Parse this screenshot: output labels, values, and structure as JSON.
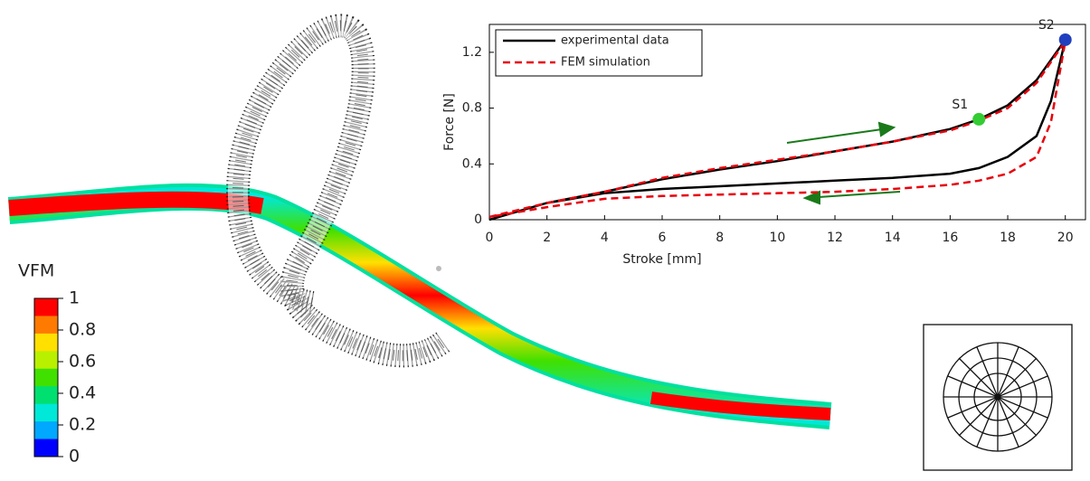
{
  "chart_data": {
    "type": "line",
    "xlabel": "Stroke [mm]",
    "ylabel": "Force [N]",
    "x": [
      0,
      2,
      4,
      6,
      8,
      10,
      12,
      14,
      16,
      17,
      18,
      19,
      20,
      19.5,
      19,
      18,
      17,
      16,
      14,
      12,
      10,
      8,
      6,
      4,
      2,
      0
    ],
    "series": [
      {
        "name": "experimental data",
        "color": "#000000",
        "dash": false,
        "values": [
          0,
          0.12,
          0.2,
          0.29,
          0.36,
          0.42,
          0.49,
          0.56,
          0.65,
          0.72,
          0.82,
          1.0,
          1.29,
          0.85,
          0.6,
          0.45,
          0.37,
          0.33,
          0.3,
          0.28,
          0.26,
          0.24,
          0.22,
          0.19,
          0.12,
          0
        ]
      },
      {
        "name": "FEM simulation",
        "color": "#e8000b",
        "dash": true,
        "values": [
          0.02,
          0.12,
          0.2,
          0.3,
          0.37,
          0.43,
          0.49,
          0.56,
          0.64,
          0.71,
          0.8,
          0.98,
          1.28,
          0.7,
          0.45,
          0.33,
          0.28,
          0.25,
          0.22,
          0.2,
          0.19,
          0.18,
          0.17,
          0.15,
          0.09,
          0.02
        ]
      }
    ],
    "points": [
      {
        "label": "S1",
        "x": 17,
        "y": 0.72,
        "color": "#33cc33"
      },
      {
        "label": "S2",
        "x": 20,
        "y": 1.29,
        "color": "#1f3fbf"
      }
    ],
    "xlim": [
      0,
      20.7
    ],
    "ylim": [
      0,
      1.4
    ],
    "xticks": [
      0,
      2,
      4,
      6,
      8,
      10,
      12,
      14,
      16,
      18,
      20
    ],
    "yticks": [
      0,
      0.4,
      0.8,
      1.2
    ],
    "legend": "upper left"
  },
  "colorbar": {
    "title": "VFM",
    "ticks": [
      1,
      0.8,
      0.6,
      0.4,
      0.2,
      0
    ],
    "colors": [
      "#ff0000",
      "#ff7a00",
      "#ffe000",
      "#b8f000",
      "#40e000",
      "#00e070",
      "#00e8d8",
      "#00a8ff",
      "#0000ff"
    ]
  }
}
